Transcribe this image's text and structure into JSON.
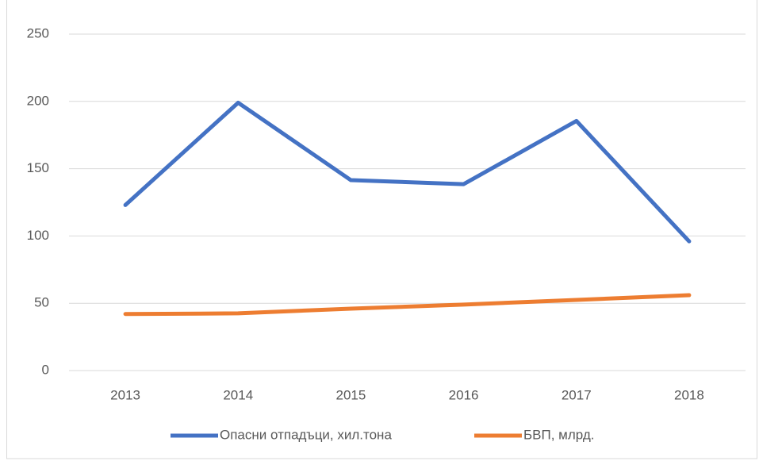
{
  "chart_data": {
    "type": "line",
    "categories": [
      "2013",
      "2014",
      "2015",
      "2016",
      "2017",
      "2018"
    ],
    "series": [
      {
        "name": "Опасни отпадъци, хил.тона",
        "color": "#4472c4",
        "values": [
          123,
          199,
          141.5,
          138.5,
          185.5,
          96
        ]
      },
      {
        "name": "БВП, млрд.",
        "color": "#ed7d31",
        "values": [
          42,
          42.5,
          46,
          49,
          52.5,
          56
        ]
      }
    ],
    "ylim": [
      0,
      250
    ],
    "yticks": [
      0,
      50,
      100,
      150,
      200,
      250
    ],
    "grid": true,
    "legend": "bottom"
  }
}
